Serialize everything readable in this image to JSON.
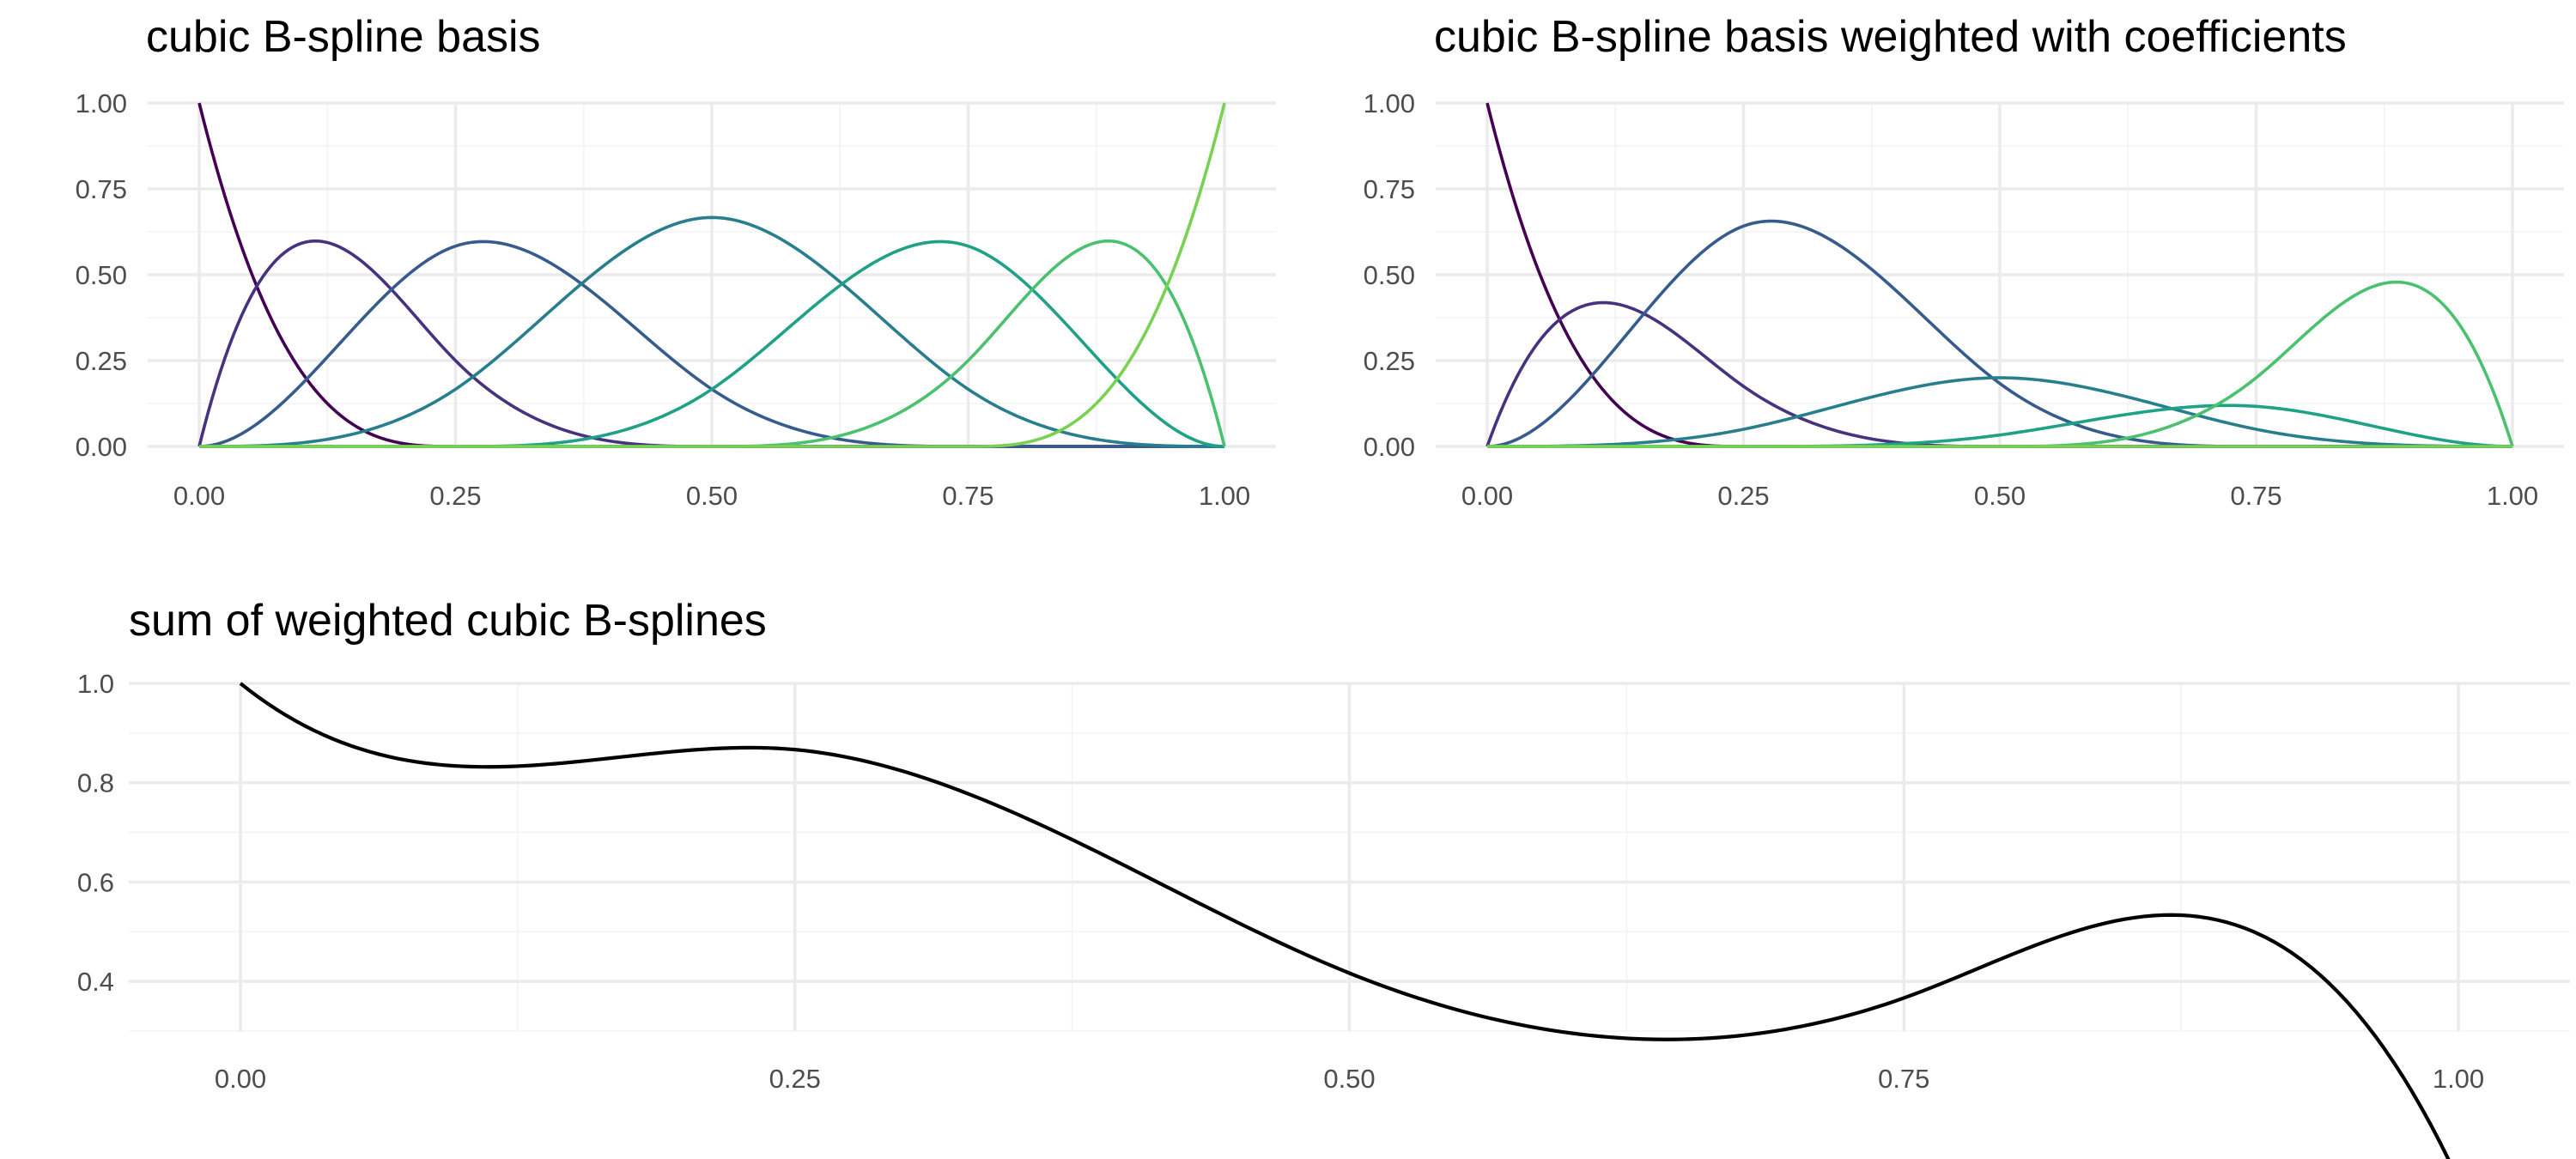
{
  "chart_data": [
    {
      "id": "basis",
      "type": "line",
      "title": "cubic B-spline basis",
      "xlabel": "",
      "ylabel": "",
      "xlim": [
        0,
        1
      ],
      "ylim": [
        0,
        1
      ],
      "x_ticks": [
        "0.00",
        "0.25",
        "0.50",
        "0.75",
        "1.00"
      ],
      "y_ticks": [
        "0.00",
        "0.25",
        "0.50",
        "0.75",
        "1.00"
      ],
      "grid": true,
      "legend": "none",
      "knots": [
        0,
        0,
        0,
        0,
        0.25,
        0.5,
        0.75,
        1,
        1,
        1,
        1
      ],
      "series": [
        {
          "weight": 1,
          "color": "#440154"
        },
        {
          "weight": 1,
          "color": "#46327e"
        },
        {
          "weight": 1,
          "color": "#365c8d"
        },
        {
          "weight": 1,
          "color": "#277f8e"
        },
        {
          "weight": 1,
          "color": "#1fa187"
        },
        {
          "weight": 1,
          "color": "#4ac16d"
        },
        {
          "weight": 1,
          "color": "#78d152"
        }
      ]
    },
    {
      "id": "weighted",
      "type": "line",
      "title": "cubic B-spline basis weighted with coefficients",
      "xlabel": "",
      "ylabel": "",
      "xlim": [
        0,
        1
      ],
      "ylim": [
        0,
        1
      ],
      "x_ticks": [
        "0.00",
        "0.25",
        "0.50",
        "0.75",
        "1.00"
      ],
      "y_ticks": [
        "0.00",
        "0.25",
        "0.50",
        "0.75",
        "1.00"
      ],
      "grid": true,
      "legend": "none",
      "knots": [
        0,
        0,
        0,
        0,
        0.25,
        0.5,
        0.75,
        1,
        1,
        1,
        1
      ],
      "series": [
        {
          "weight": 1.0,
          "color": "#440154"
        },
        {
          "weight": 0.7,
          "color": "#46327e"
        },
        {
          "weight": 1.1,
          "color": "#365c8d"
        },
        {
          "weight": 0.3,
          "color": "#277f8e"
        },
        {
          "weight": 0.2,
          "color": "#1fa187"
        },
        {
          "weight": 0.8,
          "color": "#4ac16d"
        },
        {
          "weight": 0.0,
          "color": "#78d152"
        }
      ]
    },
    {
      "id": "sum",
      "type": "line",
      "title": "sum of weighted cubic B-splines",
      "xlabel": "",
      "ylabel": "",
      "xlim": [
        0,
        1
      ],
      "ylim": [
        0.3,
        1.0
      ],
      "x_ticks": [
        "0.00",
        "0.25",
        "0.50",
        "0.75",
        "1.00"
      ],
      "y_ticks": [
        "0.4",
        "0.6",
        "0.8",
        "1.0"
      ],
      "grid": true,
      "legend": "none",
      "knots": [
        0,
        0,
        0,
        0,
        0.25,
        0.5,
        0.75,
        1,
        1,
        1,
        1
      ],
      "coefficients": [
        1.0,
        0.7,
        1.1,
        0.3,
        0.2,
        0.8,
        0.0
      ],
      "line_color": "#000000"
    }
  ]
}
